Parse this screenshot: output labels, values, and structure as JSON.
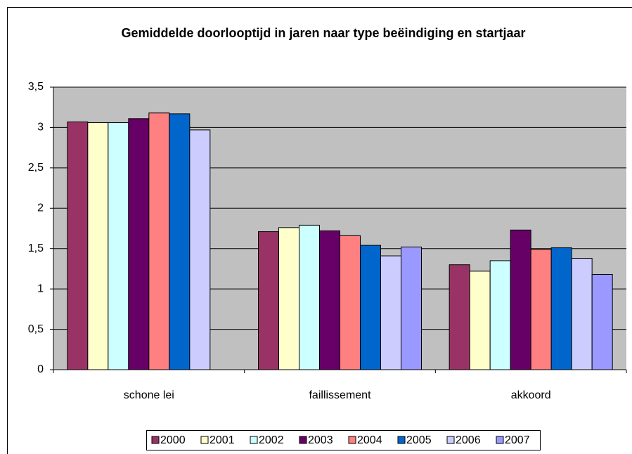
{
  "chart_data": {
    "type": "bar",
    "title": "Gemiddelde doorlooptijd in jaren naar type beëindiging en startjaar",
    "categories": [
      "schone lei",
      "faillissement",
      "akkoord"
    ],
    "series": [
      {
        "name": "2000",
        "color": "#993366",
        "values": [
          3.07,
          1.71,
          1.3
        ]
      },
      {
        "name": "2001",
        "color": "#FFFFCC",
        "values": [
          3.06,
          1.76,
          1.22
        ]
      },
      {
        "name": "2002",
        "color": "#CCFFFF",
        "values": [
          3.06,
          1.79,
          1.35
        ]
      },
      {
        "name": "2003",
        "color": "#660066",
        "values": [
          3.11,
          1.72,
          1.73
        ]
      },
      {
        "name": "2004",
        "color": "#FF8080",
        "values": [
          3.18,
          1.66,
          1.49
        ]
      },
      {
        "name": "2005",
        "color": "#0066CC",
        "values": [
          3.17,
          1.54,
          1.51
        ]
      },
      {
        "name": "2006",
        "color": "#CCCCFF",
        "values": [
          2.97,
          1.41,
          1.38
        ]
      },
      {
        "name": "2007",
        "color": "#9999FF",
        "values": [
          null,
          1.52,
          1.18
        ]
      }
    ],
    "ylim": [
      0,
      3.5
    ],
    "yticks": [
      0,
      {
        "value": 0.5,
        "label": "0,5"
      },
      1,
      {
        "value": 1.5,
        "label": "1,5"
      },
      2,
      {
        "value": 2.5,
        "label": "2,5"
      },
      3,
      {
        "value": 3.5,
        "label": "3,5"
      }
    ],
    "grid": true,
    "legend": "bottom"
  }
}
